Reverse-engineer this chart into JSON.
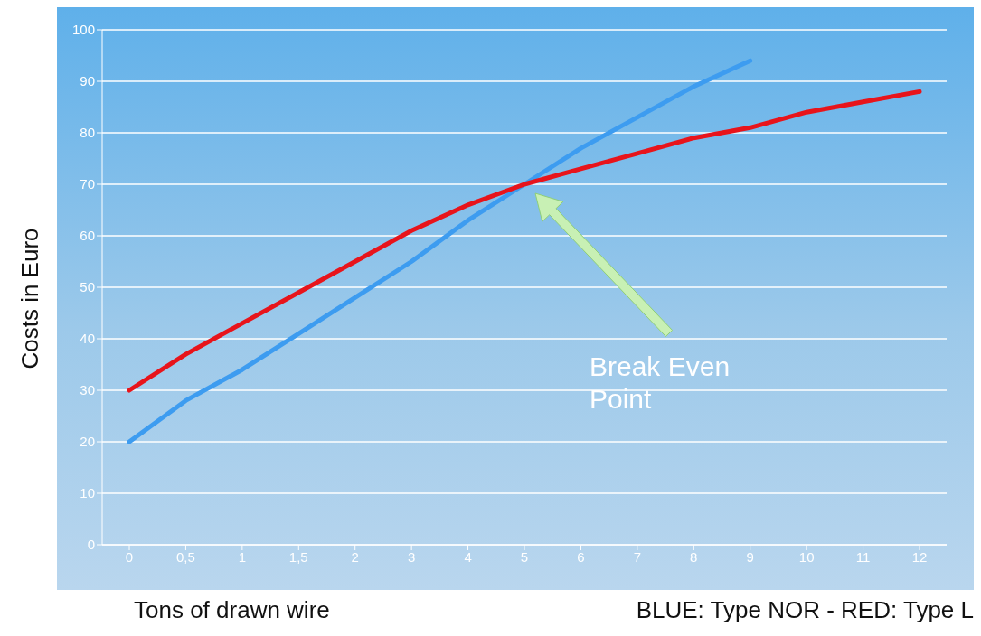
{
  "chart_data": {
    "type": "line",
    "xlabel": "Tons of drawn wire",
    "ylabel": "Costs in Euro",
    "categories": [
      "0",
      "0,5",
      "1",
      "1,5",
      "2",
      "3",
      "4",
      "5",
      "6",
      "7",
      "8",
      "9",
      "10",
      "11",
      "12"
    ],
    "series": [
      {
        "color": "#3d9cf0",
        "values": [
          20,
          28,
          34,
          41,
          48,
          55,
          63,
          70,
          77,
          83,
          89,
          94,
          null,
          null,
          null
        ]
      },
      {
        "color": "#e8141b",
        "values": [
          30,
          37,
          43,
          49,
          55,
          61,
          66,
          70,
          73,
          76,
          79,
          81,
          84,
          86,
          88
        ]
      }
    ],
    "ylim": [
      0,
      100
    ],
    "yticks": [
      0,
      10,
      20,
      30,
      40,
      50,
      60,
      70,
      80,
      90,
      100
    ],
    "grid": "y",
    "marker": "none",
    "line_style": "solid",
    "legend": false,
    "annotations": [
      "Break Even Point",
      "BLUE: Type NOR - RED: Type L"
    ]
  }
}
